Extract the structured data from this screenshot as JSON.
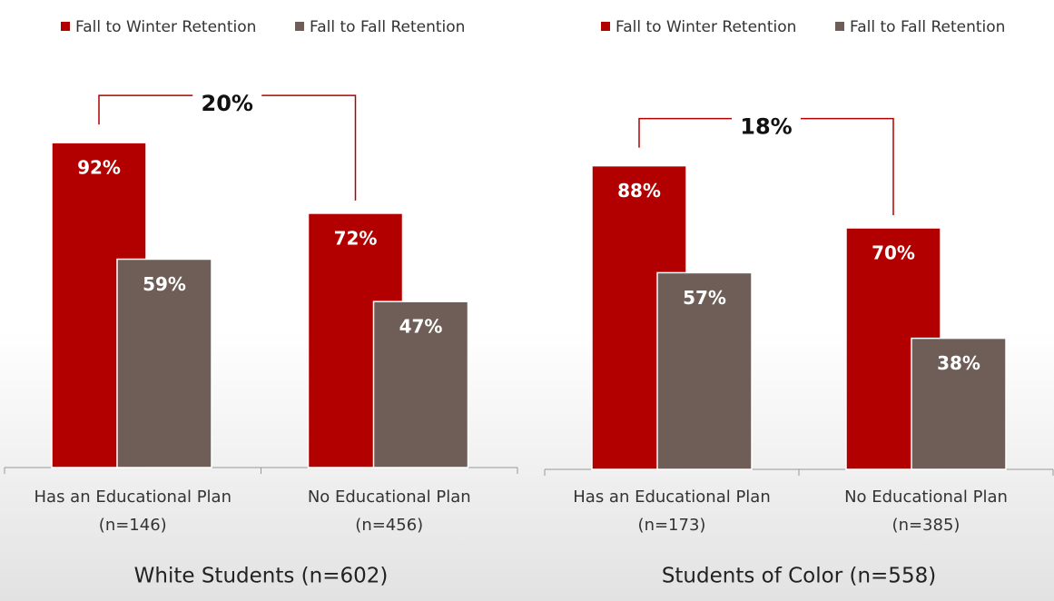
{
  "chart_data": [
    {
      "type": "bar",
      "title": "White Students (n=602)",
      "annotation": "20%",
      "categories": [
        [
          "Has an Educational Plan",
          "(n=146)"
        ],
        [
          "No Educational Plan",
          "(n=456)"
        ]
      ],
      "series": [
        {
          "name": "Fall to Winter Retention",
          "color": "#b20000",
          "values": [
            92,
            72
          ],
          "value_labels": [
            "92%",
            "72%"
          ]
        },
        {
          "name": "Fall to Fall Retention",
          "color": "#6e5e57",
          "values": [
            59,
            47
          ],
          "value_labels": [
            "59%",
            "47%"
          ]
        }
      ],
      "ylim": [
        0,
        100
      ]
    },
    {
      "type": "bar",
      "title": "Students of Color (n=558)",
      "annotation": "18%",
      "categories": [
        [
          "Has an Educational Plan",
          "(n=173)"
        ],
        [
          "No Educational Plan",
          "(n=385)"
        ]
      ],
      "series": [
        {
          "name": "Fall to Winter Retention",
          "color": "#b20000",
          "values": [
            88,
            70
          ],
          "value_labels": [
            "88%",
            "70%"
          ]
        },
        {
          "name": "Fall to Fall Retention",
          "color": "#6e5e57",
          "values": [
            57,
            38
          ],
          "value_labels": [
            "57%",
            "38%"
          ]
        }
      ],
      "ylim": [
        0,
        100
      ]
    }
  ]
}
